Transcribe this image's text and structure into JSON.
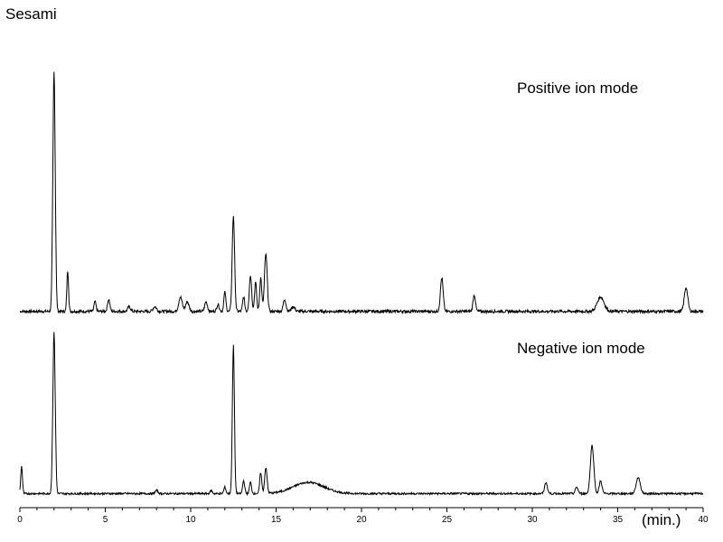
{
  "chart_data": {
    "type": "line",
    "title": "Sesami",
    "xlabel": "(min.)",
    "xlim": [
      0,
      40
    ],
    "xticks": [
      0,
      5,
      10,
      15,
      20,
      25,
      30,
      35,
      40
    ],
    "legend": "none",
    "grid": false,
    "line_color": "#000000",
    "series": [
      {
        "name": "Positive ion mode",
        "baseline": 0.02,
        "noise": 0.006,
        "peaks": [
          {
            "x": 2.0,
            "h": 1.0,
            "w": 0.07
          },
          {
            "x": 2.8,
            "h": 0.17,
            "w": 0.05
          },
          {
            "x": 4.4,
            "h": 0.04,
            "w": 0.06
          },
          {
            "x": 5.2,
            "h": 0.05,
            "w": 0.07
          },
          {
            "x": 6.4,
            "h": 0.02,
            "w": 0.08
          },
          {
            "x": 7.9,
            "h": 0.02,
            "w": 0.1
          },
          {
            "x": 9.4,
            "h": 0.06,
            "w": 0.1
          },
          {
            "x": 9.8,
            "h": 0.04,
            "w": 0.1
          },
          {
            "x": 10.9,
            "h": 0.04,
            "w": 0.08
          },
          {
            "x": 11.6,
            "h": 0.03,
            "w": 0.07
          },
          {
            "x": 12.0,
            "h": 0.08,
            "w": 0.06
          },
          {
            "x": 12.5,
            "h": 0.4,
            "w": 0.07
          },
          {
            "x": 13.1,
            "h": 0.06,
            "w": 0.06
          },
          {
            "x": 13.5,
            "h": 0.15,
            "w": 0.07
          },
          {
            "x": 13.8,
            "h": 0.12,
            "w": 0.06
          },
          {
            "x": 14.1,
            "h": 0.14,
            "w": 0.06
          },
          {
            "x": 14.4,
            "h": 0.24,
            "w": 0.08
          },
          {
            "x": 15.5,
            "h": 0.05,
            "w": 0.08
          },
          {
            "x": 16.0,
            "h": 0.02,
            "w": 0.1
          },
          {
            "x": 24.7,
            "h": 0.14,
            "w": 0.08
          },
          {
            "x": 26.6,
            "h": 0.07,
            "w": 0.07
          },
          {
            "x": 34.0,
            "h": 0.06,
            "w": 0.2
          },
          {
            "x": 39.0,
            "h": 0.1,
            "w": 0.1
          }
        ]
      },
      {
        "name": "Negative ion mode",
        "baseline": 0.02,
        "noise": 0.006,
        "peaks": [
          {
            "x": 0.1,
            "h": 0.17,
            "w": 0.05
          },
          {
            "x": 2.0,
            "h": 1.0,
            "w": 0.07
          },
          {
            "x": 8.0,
            "h": 0.02,
            "w": 0.08
          },
          {
            "x": 11.2,
            "h": 0.02,
            "w": 0.06
          },
          {
            "x": 12.0,
            "h": 0.04,
            "w": 0.06
          },
          {
            "x": 12.5,
            "h": 0.92,
            "w": 0.06
          },
          {
            "x": 13.1,
            "h": 0.08,
            "w": 0.06
          },
          {
            "x": 13.5,
            "h": 0.07,
            "w": 0.06
          },
          {
            "x": 14.1,
            "h": 0.13,
            "w": 0.06
          },
          {
            "x": 14.4,
            "h": 0.16,
            "w": 0.07
          },
          {
            "x": 16.9,
            "h": 0.07,
            "w": 0.9
          },
          {
            "x": 30.8,
            "h": 0.07,
            "w": 0.08
          },
          {
            "x": 32.6,
            "h": 0.04,
            "w": 0.08
          },
          {
            "x": 33.5,
            "h": 0.3,
            "w": 0.1
          },
          {
            "x": 34.0,
            "h": 0.08,
            "w": 0.08
          },
          {
            "x": 36.2,
            "h": 0.1,
            "w": 0.12
          }
        ]
      }
    ]
  }
}
